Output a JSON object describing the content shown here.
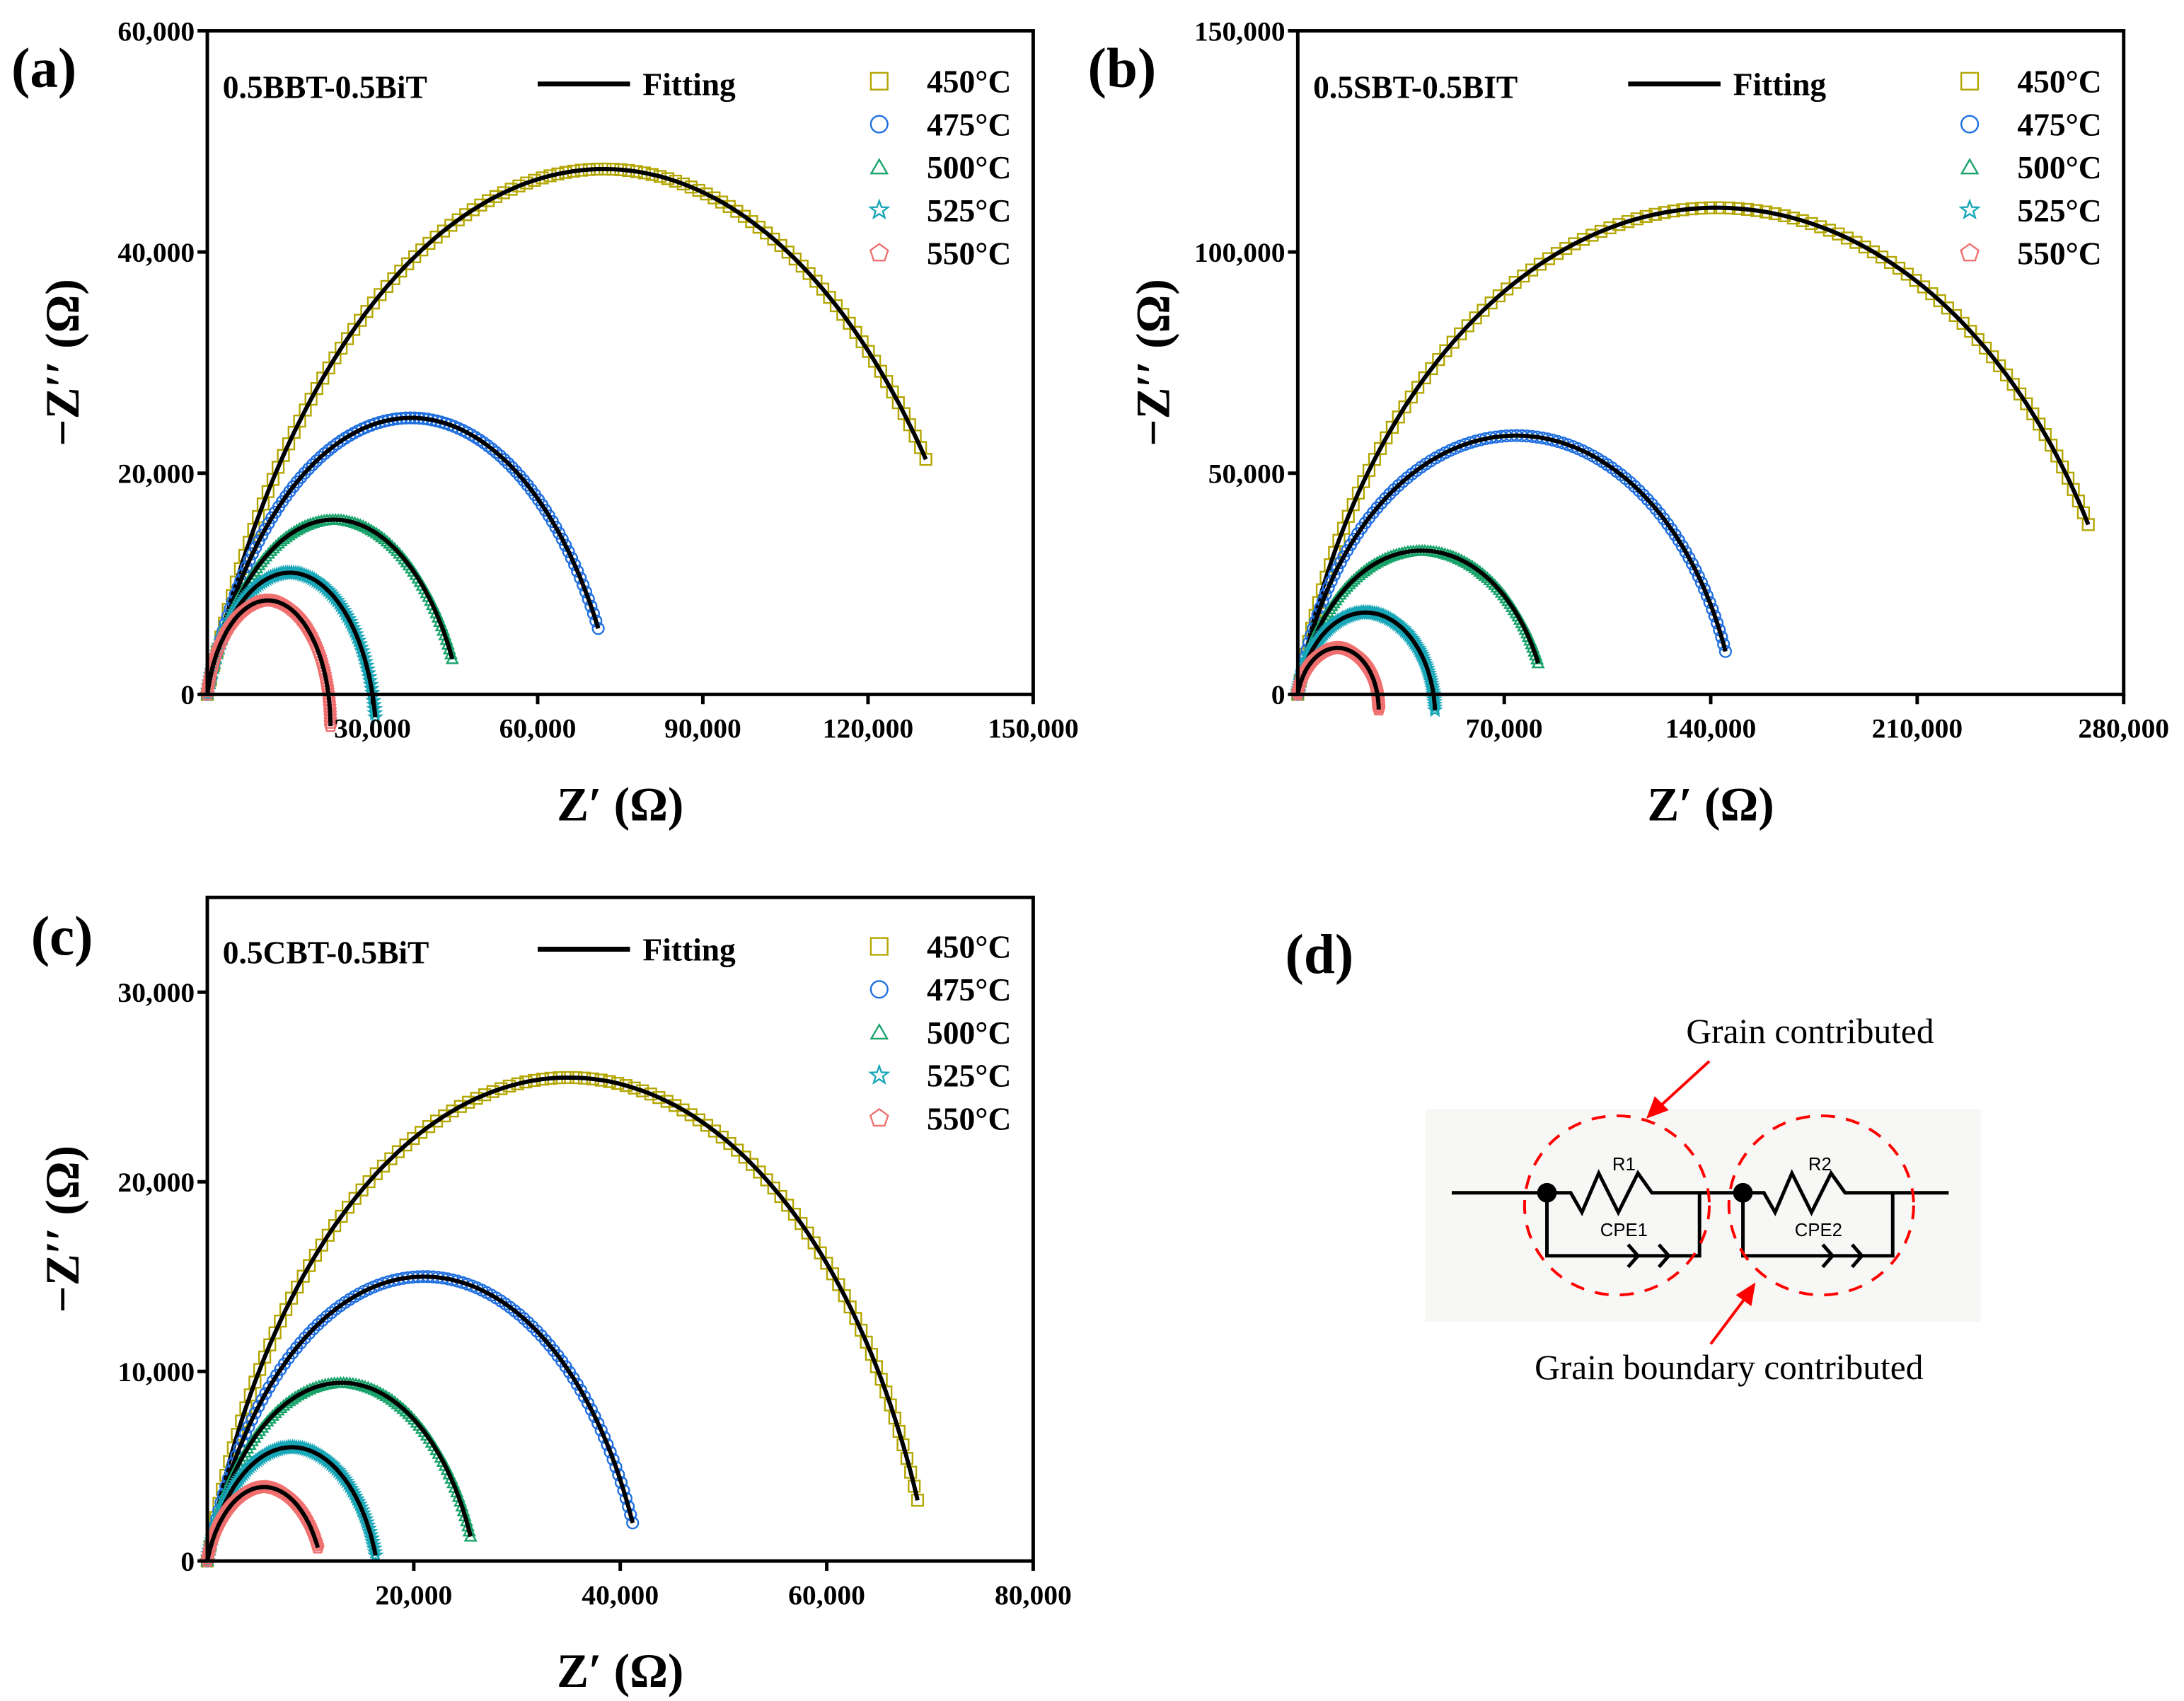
{
  "chart_data": [
    {
      "panel_label": "(a)",
      "type": "scatter",
      "sample": "0.5BBT-0.5BiT",
      "fit_label": "Fitting",
      "xlabel": "Z′ (Ω)",
      "ylabel": "−Z′′ (Ω)",
      "xlim": [
        0,
        150000
      ],
      "ylim": [
        0,
        60000
      ],
      "xticks": [
        "30,000",
        "60,000",
        "90,000",
        "120,000",
        "150,000"
      ],
      "xtick_values": [
        30000,
        60000,
        90000,
        120000,
        150000
      ],
      "yticks": [
        "0",
        "20,000",
        "40,000",
        "60,000"
      ],
      "ytick_values": [
        0,
        20000,
        40000,
        60000
      ],
      "legend_position": "top-right",
      "series": [
        {
          "name": "450°C",
          "marker": "square",
          "color": "#b3a600",
          "peak": [
            72000,
            47500
          ],
          "last_z1": 130500
        },
        {
          "name": "475°C",
          "marker": "circle",
          "color": "#1f6fe0",
          "peak": [
            37000,
            25000
          ],
          "last_z1": 71000
        },
        {
          "name": "500°C",
          "marker": "triangle",
          "color": "#17a36a",
          "peak": [
            23000,
            15800
          ],
          "last_z1": 44500
        },
        {
          "name": "525°C",
          "marker": "star",
          "color": "#18a7b8",
          "peak": [
            15000,
            11000
          ],
          "last_z1": 30500
        },
        {
          "name": "550°C",
          "marker": "pentagon",
          "color": "#f06f6f",
          "peak": [
            11000,
            8500
          ],
          "last_z1": 23500
        }
      ]
    },
    {
      "panel_label": "(b)",
      "type": "scatter",
      "sample": "0.5SBT-0.5BIT",
      "fit_label": "Fitting",
      "xlabel": "Z′ (Ω)",
      "ylabel": "−Z′′ (Ω)",
      "xlim": [
        0,
        280000
      ],
      "ylim": [
        0,
        150000
      ],
      "xticks": [
        "70,000",
        "140,000",
        "210,000",
        "280,000"
      ],
      "xtick_values": [
        70000,
        140000,
        210000,
        280000
      ],
      "yticks": [
        "0",
        "50,000",
        "100,000",
        "150,000"
      ],
      "ytick_values": [
        0,
        50000,
        100000,
        150000
      ],
      "legend_position": "top-right",
      "series": [
        {
          "name": "450°C",
          "marker": "square",
          "color": "#b3a600",
          "peak": [
            142000,
            110000
          ],
          "last_z1": 268000
        },
        {
          "name": "475°C",
          "marker": "circle",
          "color": "#1f6fe0",
          "peak": [
            74000,
            58500
          ],
          "last_z1": 145000
        },
        {
          "name": "500°C",
          "marker": "triangle",
          "color": "#17a36a",
          "peak": [
            42000,
            32500
          ],
          "last_z1": 81500
        },
        {
          "name": "525°C",
          "marker": "star",
          "color": "#18a7b8",
          "peak": [
            23000,
            18500
          ],
          "last_z1": 46500
        },
        {
          "name": "550°C",
          "marker": "pentagon",
          "color": "#f06f6f",
          "peak": [
            13500,
            10500
          ],
          "last_z1": 29000
        }
      ]
    },
    {
      "panel_label": "(c)",
      "type": "scatter",
      "sample": "0.5CBT-0.5BiT",
      "fit_label": "Fitting",
      "xlabel": "Z′ (Ω)",
      "ylabel": "−Z′′ (Ω)",
      "xlim": [
        0,
        80000
      ],
      "ylim": [
        0,
        35000
      ],
      "xticks": [
        "20,000",
        "40,000",
        "60,000",
        "80,000"
      ],
      "xtick_values": [
        20000,
        40000,
        60000,
        80000
      ],
      "yticks": [
        "0",
        "10,000",
        "20,000",
        "30,000"
      ],
      "ytick_values": [
        0,
        10000,
        20000,
        30000
      ],
      "legend_position": "top-right",
      "series": [
        {
          "name": "450°C",
          "marker": "square",
          "color": "#b3a600",
          "peak": [
            35000,
            25500
          ],
          "last_z1": 68800
        },
        {
          "name": "475°C",
          "marker": "circle",
          "color": "#1f6fe0",
          "peak": [
            21000,
            15000
          ],
          "last_z1": 41200
        },
        {
          "name": "500°C",
          "marker": "triangle",
          "color": "#17a36a",
          "peak": [
            13000,
            9400
          ],
          "last_z1": 25500
        },
        {
          "name": "525°C",
          "marker": "star",
          "color": "#18a7b8",
          "peak": [
            8200,
            6000
          ],
          "last_z1": 16300
        },
        {
          "name": "550°C",
          "marker": "pentagon",
          "color": "#f06f6f",
          "peak": [
            5500,
            3900
          ],
          "last_z1": 10700
        }
      ]
    }
  ],
  "circuit": {
    "panel_label": "(d)",
    "r1": "R1",
    "r2": "R2",
    "cpe1": "CPE1",
    "cpe2": "CPE2",
    "grain_label": "Grain contributed",
    "boundary_label": "Grain boundary contributed",
    "highlight_color": "#ff0000"
  }
}
